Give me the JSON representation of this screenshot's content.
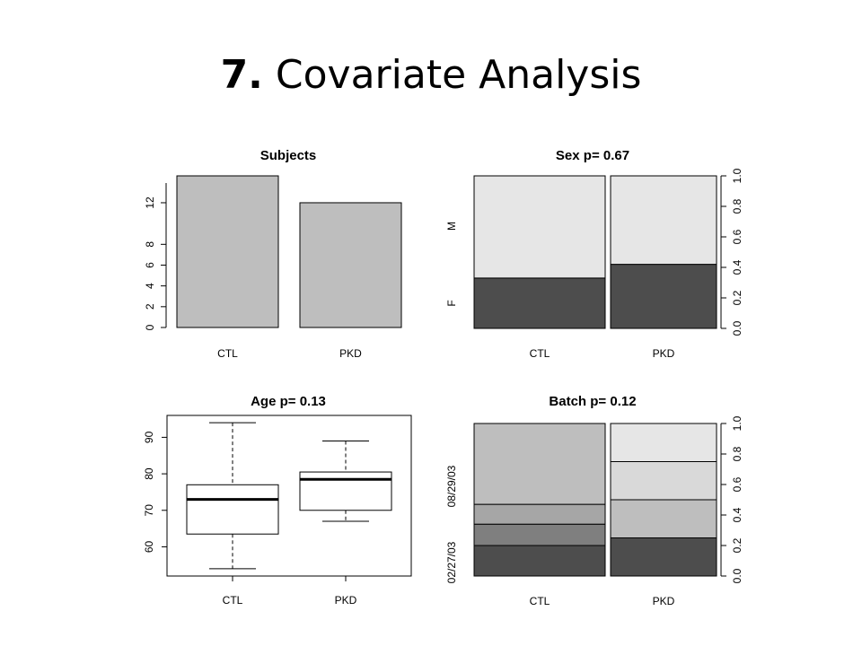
{
  "slide": {
    "title_num": "7.",
    "title_text": "Covariate Analysis"
  },
  "chart_data": [
    {
      "type": "bar",
      "title": "Subjects",
      "categories": [
        "CTL",
        "PKD"
      ],
      "values": [
        15,
        12
      ],
      "ylim": [
        0,
        14.5
      ],
      "yticks": [
        0,
        2,
        4,
        6,
        8,
        12
      ],
      "xlabel": "",
      "ylabel": "",
      "bar_color": "#bebebe",
      "grid": false
    },
    {
      "type": "bar",
      "stacked": "proportional",
      "title": "Sex  p= 0.67",
      "categories": [
        "CTL",
        "PKD"
      ],
      "widths": [
        15,
        12
      ],
      "levels": [
        "F",
        "M"
      ],
      "series": [
        {
          "name": "F",
          "color": "#4d4d4d",
          "values": [
            0.33,
            0.42
          ]
        },
        {
          "name": "M",
          "color": "#e6e6e6",
          "values": [
            0.67,
            0.58
          ]
        }
      ],
      "ylim": [
        0,
        1
      ],
      "right_ticks": [
        "0.0",
        "0.2",
        "0.4",
        "0.6",
        "0.8",
        "1.0"
      ],
      "grid": false
    },
    {
      "type": "box",
      "title": "Age  p= 0.13",
      "categories": [
        "CTL",
        "PKD"
      ],
      "boxes": [
        {
          "min": 54,
          "q1": 63.5,
          "median": 73,
          "q3": 77,
          "max": 94
        },
        {
          "min": 67,
          "q1": 70,
          "median": 78.5,
          "q3": 80.5,
          "max": 89
        }
      ],
      "ylim": [
        52,
        96
      ],
      "yticks": [
        60,
        70,
        80,
        90
      ],
      "grid": false
    },
    {
      "type": "bar",
      "stacked": "proportional",
      "title": "Batch  p= 0.12",
      "categories": [
        "CTL",
        "PKD"
      ],
      "widths": [
        15,
        12
      ],
      "levels": [
        "02/27/03",
        "08/29/03"
      ],
      "series": [
        {
          "name": "",
          "color": "#4d4d4d",
          "values": [
            0.2,
            0.25
          ]
        },
        {
          "name": "",
          "color": "#7f7f7f",
          "values": [
            0.14,
            0
          ]
        },
        {
          "name": "",
          "color": "#a6a6a6",
          "values": [
            0.13,
            0
          ]
        },
        {
          "name": "",
          "color": "#bebebe",
          "values": [
            0.53,
            0.25
          ]
        },
        {
          "name": "",
          "color": "#d9d9d9",
          "values": [
            0,
            0.25
          ]
        },
        {
          "name": "",
          "color": "#e6e6e6",
          "values": [
            0,
            0.25
          ]
        }
      ],
      "ylim": [
        0,
        1
      ],
      "right_ticks": [
        "0.0",
        "0.2",
        "0.4",
        "0.6",
        "0.8",
        "1.0"
      ],
      "grid": false
    }
  ]
}
